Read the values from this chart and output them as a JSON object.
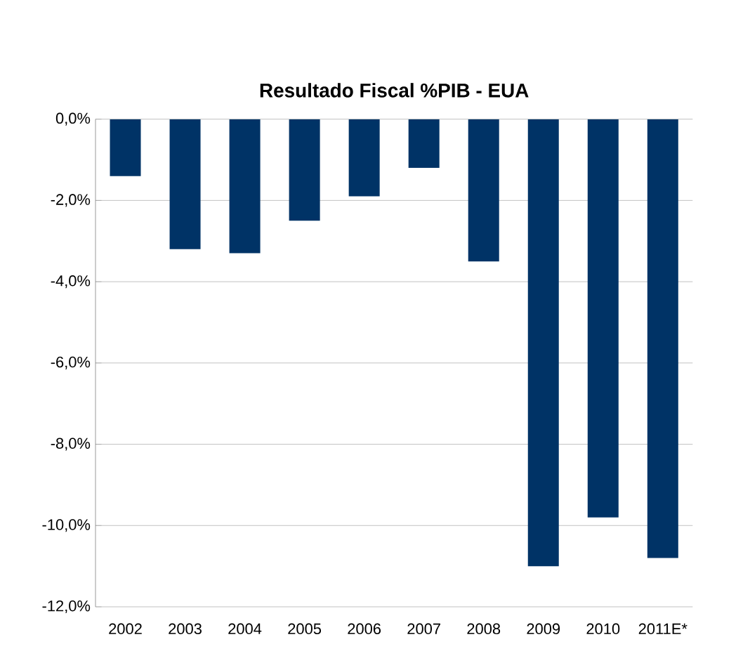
{
  "chart_data": {
    "type": "bar",
    "title": "Resultado Fiscal %PIB - EUA",
    "categories": [
      "2002",
      "2003",
      "2004",
      "2005",
      "2006",
      "2007",
      "2008",
      "2009",
      "2010",
      "2011E*"
    ],
    "values": [
      -1.4,
      -3.2,
      -3.3,
      -2.5,
      -1.9,
      -1.2,
      -3.5,
      -11.0,
      -9.8,
      -10.8
    ],
    "color": "#003366",
    "ylim": [
      -12,
      0
    ],
    "yticks": [
      {
        "value": -12,
        "label": "-12,0%"
      },
      {
        "value": -10,
        "label": "-10,0%"
      },
      {
        "value": -8,
        "label": "-8,0%"
      },
      {
        "value": -6,
        "label": "-6,0%"
      },
      {
        "value": -4,
        "label": "-4,0%"
      },
      {
        "value": -2,
        "label": "-2,0%"
      },
      {
        "value": 0,
        "label": "0,0%"
      }
    ],
    "grid": "y"
  }
}
